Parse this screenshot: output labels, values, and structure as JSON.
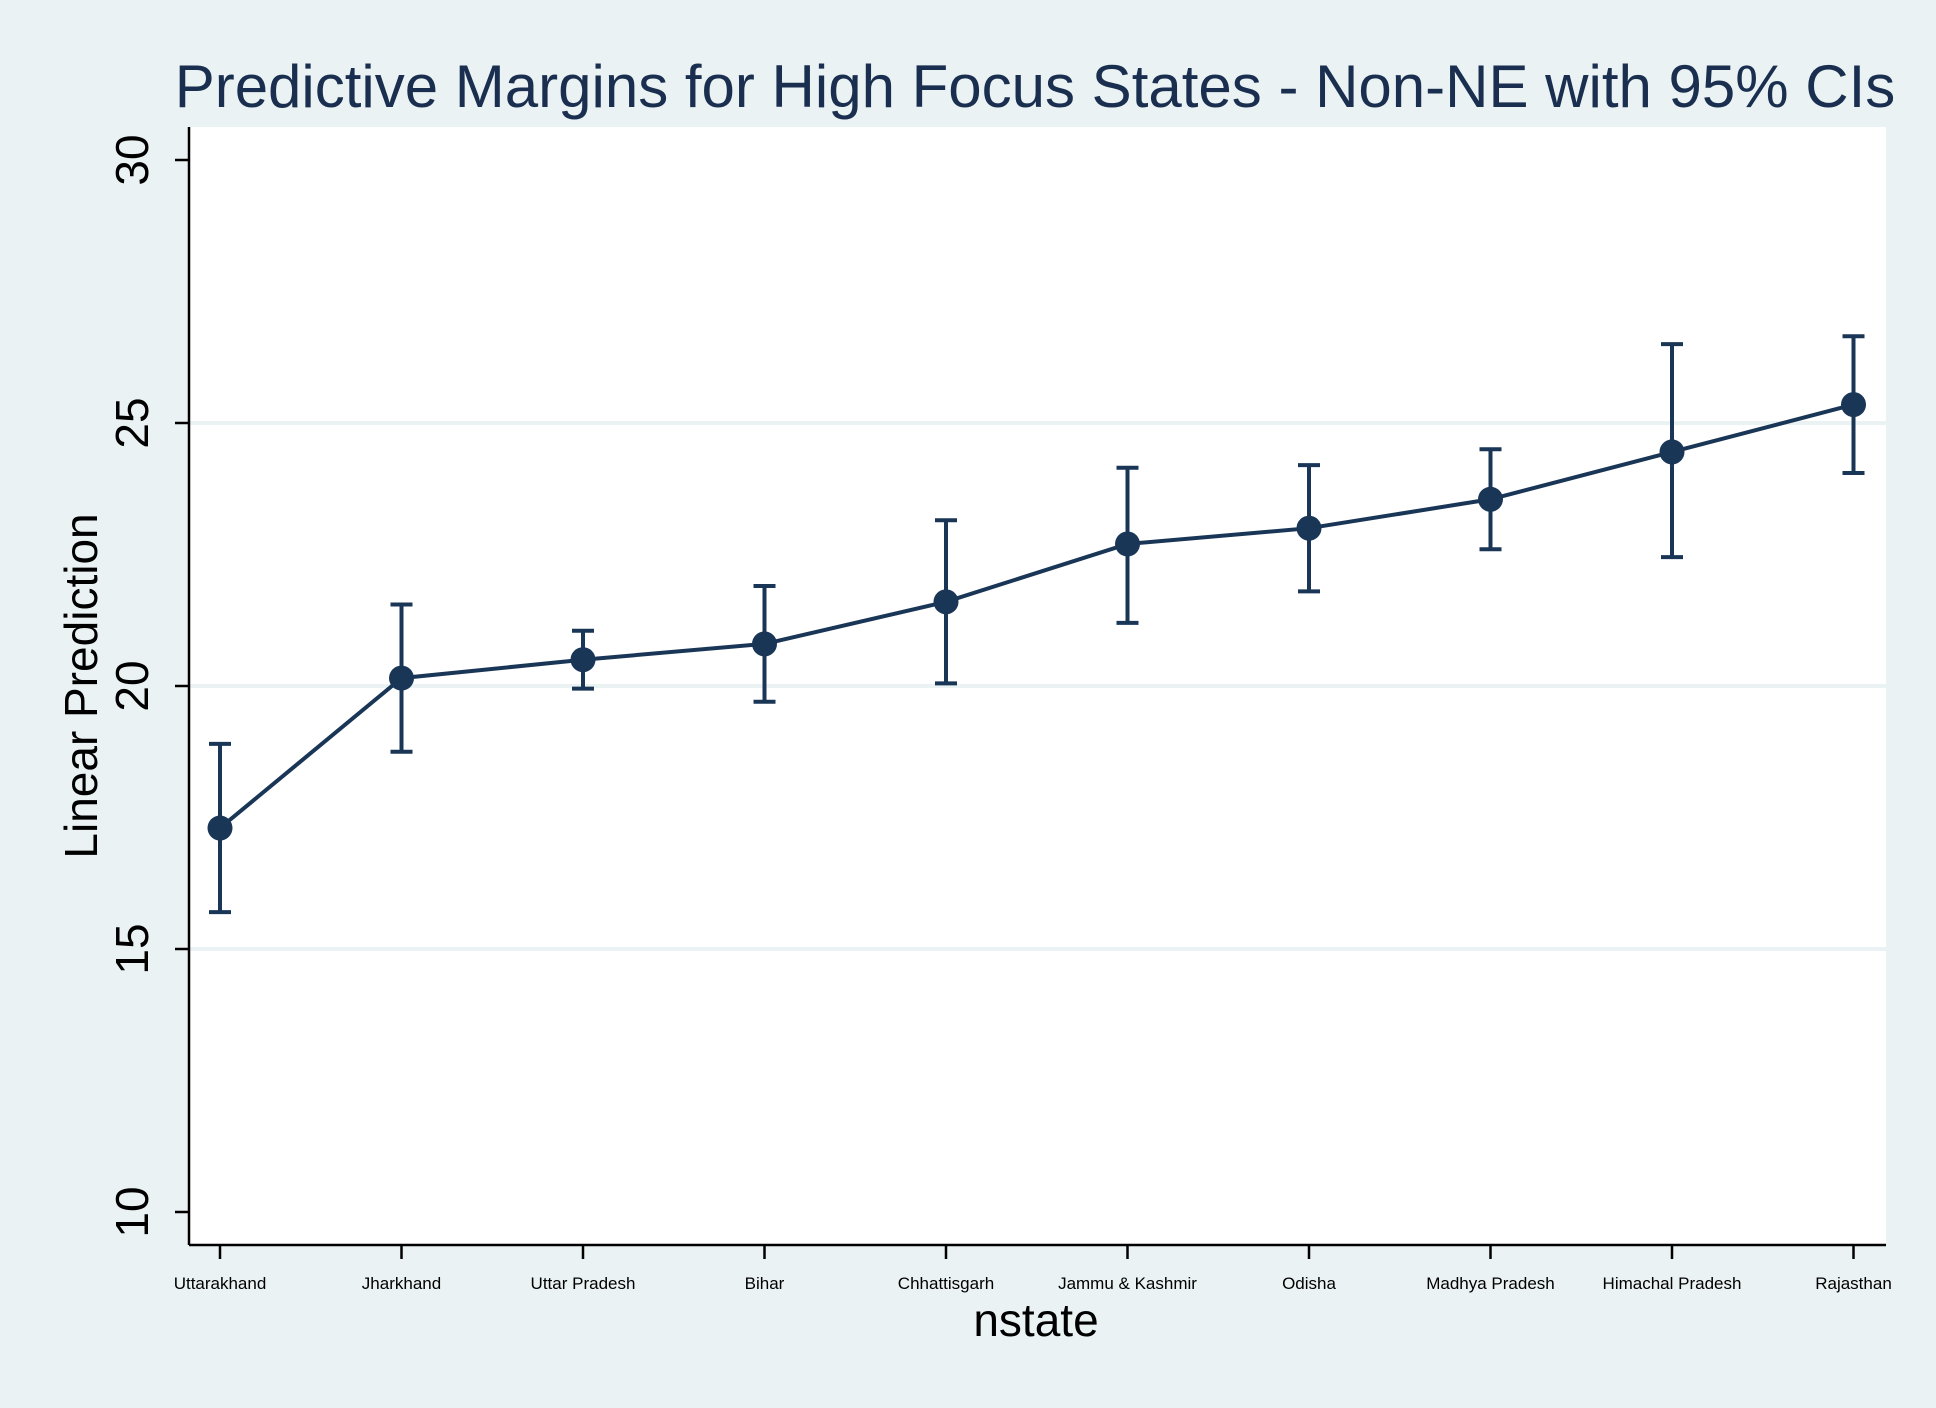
{
  "chart_data": {
    "type": "line",
    "title": "Predictive Margins for High Focus States - Non-NE with 95% CIs",
    "xlabel": "nstate",
    "ylabel": "Linear Prediction",
    "ylim": [
      10,
      30
    ],
    "yticks": [
      10,
      15,
      20,
      25,
      30
    ],
    "grid": true,
    "categories": [
      "Uttarakhand",
      "Jharkhand",
      "Uttar Pradesh",
      "Bihar",
      "Chhattisgarh",
      "Jammu & Kashmir",
      "Odisha",
      "Madhya Pradesh",
      "Himachal Pradesh",
      "Rajasthan"
    ],
    "series": [
      {
        "values": [
          17.3,
          20.15,
          20.5,
          20.8,
          21.6,
          22.7,
          23.0,
          23.55,
          24.45,
          25.35
        ],
        "ci_lower": [
          15.7,
          18.75,
          19.95,
          19.7,
          20.05,
          21.2,
          21.8,
          22.6,
          22.45,
          24.05
        ],
        "ci_upper": [
          18.9,
          21.55,
          21.05,
          21.9,
          23.15,
          24.15,
          24.2,
          24.5,
          26.5,
          26.65
        ],
        "color": "#1a3657"
      }
    ]
  }
}
